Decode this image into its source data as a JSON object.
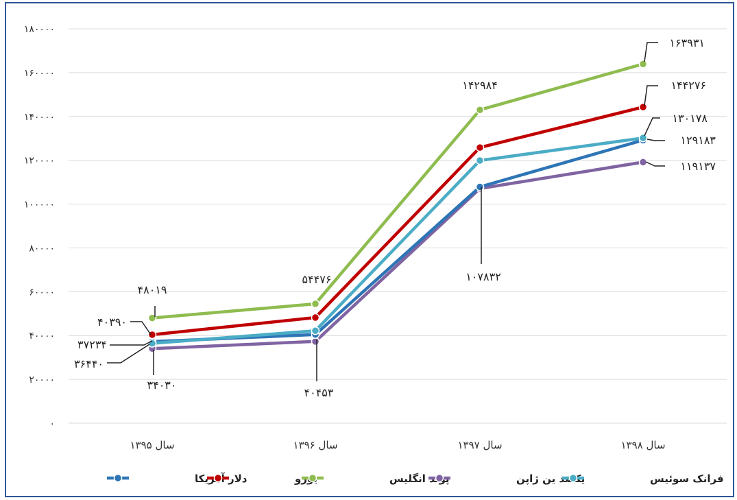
{
  "chart_data": {
    "type": "line",
    "categories": [
      "سال ۱۳۹۵",
      "سال ۱۳۹۶",
      "سال ۱۳۹۷",
      "سال ۱۳۹۸"
    ],
    "ylim": [
      0,
      180000
    ],
    "y_ticks": [
      {
        "value": 0,
        "label": "۰"
      },
      {
        "value": 20000,
        "label": "۲۰۰۰۰"
      },
      {
        "value": 40000,
        "label": "۴۰۰۰۰"
      },
      {
        "value": 60000,
        "label": "۶۰۰۰۰"
      },
      {
        "value": 80000,
        "label": "۸۰۰۰۰"
      },
      {
        "value": 100000,
        "label": "۱۰۰۰۰۰"
      },
      {
        "value": 120000,
        "label": "۱۲۰۰۰۰"
      },
      {
        "value": 140000,
        "label": "۱۴۰۰۰۰"
      },
      {
        "value": 160000,
        "label": "۱۶۰۰۰۰"
      },
      {
        "value": 180000,
        "label": "۱۸۰۰۰۰"
      }
    ],
    "grid": true,
    "legend_position": "bottom",
    "series": [
      {
        "name": "دلار آمریکا",
        "color": "#2e75b6",
        "values": [
          37234,
          40453,
          107832,
          129183
        ]
      },
      {
        "name": "یورو",
        "color": "#c00000",
        "values": [
          40390,
          48200,
          125800,
          144276
        ]
      },
      {
        "name": "پوند انگلیس",
        "color": "#8fbc4f",
        "values": [
          48019,
          54476,
          142984,
          163931
        ]
      },
      {
        "name": "یکصد ین ژاپن",
        "color": "#8064a2",
        "values": [
          34030,
          37300,
          107100,
          119137
        ]
      },
      {
        "name": "فرانک سوئیس",
        "color": "#4bacc6",
        "values": [
          36440,
          42200,
          119900,
          130178
        ]
      }
    ],
    "data_labels": [
      {
        "text": "۴۸۰۱۹"
      },
      {
        "text": "۴۰۳۹۰"
      },
      {
        "text": "۳۷۲۳۴"
      },
      {
        "text": "۳۶۴۴۰"
      },
      {
        "text": "۳۴۰۳۰"
      },
      {
        "text": "۵۴۴۷۶"
      },
      {
        "text": "۴۰۴۵۳"
      },
      {
        "text": "۱۴۲۹۸۴"
      },
      {
        "text": "۱۰۷۸۳۲"
      },
      {
        "text": "۱۶۳۹۳۱"
      },
      {
        "text": "۱۴۴۲۷۶"
      },
      {
        "text": "۱۳۰۱۷۸"
      },
      {
        "text": "۱۲۹۱۸۳"
      },
      {
        "text": "۱۱۹۱۳۷"
      }
    ]
  }
}
